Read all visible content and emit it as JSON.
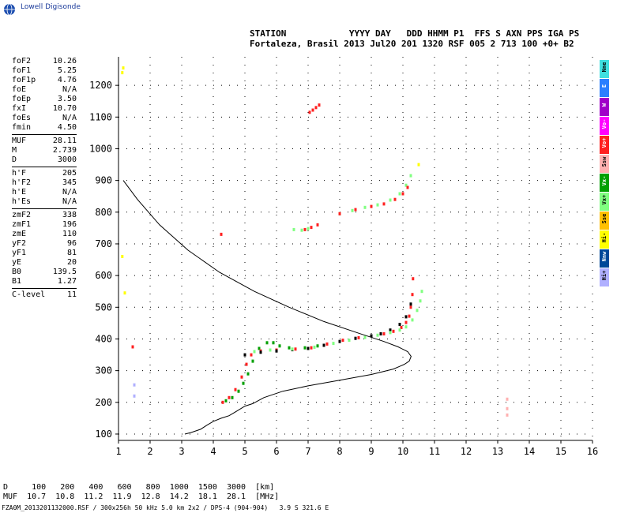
{
  "logo": {
    "text": "Lowell Digisonde",
    "icon": "globe-icon"
  },
  "header": {
    "line1": "STATION            YYYY DAY   DDD HHMM P1  FFS S AXN PPS IGA PS",
    "line2": "Fortaleza, Brasil 2013 Jul20 201 1320 RSF 005 2 713 100 +0+ B2"
  },
  "params": [
    [
      {
        "name": "foF2",
        "value": "10.26"
      },
      {
        "name": "foF1",
        "value": "5.25"
      },
      {
        "name": "foF1p",
        "value": "4.76"
      },
      {
        "name": "foE",
        "value": "N/A"
      },
      {
        "name": "foEp",
        "value": "3.50"
      },
      {
        "name": "fxI",
        "value": "10.70"
      },
      {
        "name": "foEs",
        "value": "N/A"
      },
      {
        "name": "fmin",
        "value": "4.50"
      }
    ],
    [
      {
        "name": "MUF",
        "value": "28.11"
      },
      {
        "name": "M",
        "value": "2.739"
      },
      {
        "name": "D",
        "value": "3000"
      }
    ],
    [
      {
        "name": "h'F",
        "value": "205"
      },
      {
        "name": "h'F2",
        "value": "345"
      },
      {
        "name": "h'E",
        "value": "N/A"
      },
      {
        "name": "h'Es",
        "value": "N/A"
      }
    ],
    [
      {
        "name": "zmF2",
        "value": "338"
      },
      {
        "name": "zmF1",
        "value": "196"
      },
      {
        "name": "zmE",
        "value": "110"
      },
      {
        "name": "yF2",
        "value": "96"
      },
      {
        "name": "yF1",
        "value": "81"
      },
      {
        "name": "yE",
        "value": "20"
      },
      {
        "name": "B0",
        "value": "139.5"
      },
      {
        "name": "B1",
        "value": "1.27"
      }
    ],
    [
      {
        "name": "C-level",
        "value": "11"
      }
    ]
  ],
  "legend": [
    {
      "label": "Nne",
      "color": "#40e0e0"
    },
    {
      "label": "E",
      "color": "#2a7fff"
    },
    {
      "label": "W",
      "color": "#a000c8"
    },
    {
      "label": "Vo-",
      "color": "#ff00ff"
    },
    {
      "label": "Vo+",
      "color": "#ff2020"
    },
    {
      "label": "Ssw",
      "color": "#ffb0b0"
    },
    {
      "label": "Vx-",
      "color": "#00a000"
    },
    {
      "label": "Vx+",
      "color": "#80ff80"
    },
    {
      "label": "Sse",
      "color": "#ffc000"
    },
    {
      "label": "Hi-",
      "color": "#ffff00"
    },
    {
      "label": "Nnw",
      "color": "#004898"
    },
    {
      "label": "Hi+",
      "color": "#b0b0ff"
    }
  ],
  "footer": {
    "d_line": "D     100   200   400   600   800  1000  1500  3000  [km]",
    "muf_line": "MUF  10.7  10.8  11.2  11.9  12.8  14.2  18.1  28.1  [MHz]",
    "file_line": "FZA0M_2013201132000.RSF / 300x256h 50 kHz 5.0 km 2x2 / DPS-4 (904-904)   3.9 S 321.6 E"
  },
  "chart_data": {
    "type": "scatter",
    "title": "",
    "xlabel": "",
    "ylabel": "",
    "xlim": [
      1,
      16
    ],
    "ylim": [
      80,
      1290
    ],
    "x_ticks": [
      1,
      2,
      3,
      4,
      5,
      6,
      7,
      8,
      9,
      10,
      11,
      12,
      13,
      14,
      15,
      16
    ],
    "y_ticks": [
      100,
      200,
      300,
      400,
      500,
      600,
      700,
      800,
      900,
      1000,
      1100,
      1200
    ],
    "grid": "dotted",
    "profile": [
      [
        3.1,
        100
      ],
      [
        3.3,
        105
      ],
      [
        3.6,
        115
      ],
      [
        3.8,
        128
      ],
      [
        4.0,
        140
      ],
      [
        4.25,
        150
      ],
      [
        4.5,
        158
      ],
      [
        4.7,
        170
      ],
      [
        5.0,
        188
      ],
      [
        5.25,
        196
      ],
      [
        5.6,
        215
      ],
      [
        6.2,
        235
      ],
      [
        7.0,
        252
      ],
      [
        8.0,
        270
      ],
      [
        9.0,
        288
      ],
      [
        9.7,
        305
      ],
      [
        10.05,
        320
      ],
      [
        10.2,
        330
      ],
      [
        10.26,
        345
      ],
      [
        10.15,
        360
      ],
      [
        9.85,
        375
      ],
      [
        9.4,
        392
      ],
      [
        8.6,
        418
      ],
      [
        7.5,
        455
      ],
      [
        6.4,
        500
      ],
      [
        5.3,
        550
      ],
      [
        4.2,
        610
      ],
      [
        3.2,
        680
      ],
      [
        2.3,
        760
      ],
      [
        1.6,
        840
      ],
      [
        1.15,
        900
      ]
    ],
    "series": [
      {
        "color": "#00a000",
        "points": [
          [
            4.4,
            205
          ],
          [
            4.6,
            215
          ],
          [
            4.8,
            235
          ],
          [
            4.95,
            260
          ],
          [
            5.1,
            290
          ],
          [
            5.25,
            330
          ],
          [
            5.45,
            370
          ],
          [
            5.7,
            388
          ],
          [
            5.9,
            388
          ],
          [
            6.1,
            378
          ],
          [
            6.4,
            372
          ],
          [
            6.9,
            372
          ],
          [
            7.3,
            378
          ]
        ]
      },
      {
        "color": "#ff2020",
        "points": [
          [
            4.3,
            200
          ],
          [
            4.5,
            215
          ],
          [
            4.7,
            240
          ],
          [
            4.9,
            280
          ],
          [
            5.05,
            320
          ],
          [
            5.2,
            350
          ],
          [
            5.5,
            362
          ],
          [
            6.0,
            365
          ],
          [
            6.6,
            368
          ],
          [
            7.1,
            372
          ],
          [
            7.6,
            384
          ],
          [
            8.1,
            396
          ],
          [
            8.6,
            404
          ],
          [
            9.0,
            410
          ],
          [
            9.4,
            416
          ],
          [
            9.7,
            424
          ],
          [
            9.95,
            436
          ],
          [
            10.1,
            452
          ],
          [
            10.2,
            472
          ],
          [
            10.25,
            500
          ],
          [
            10.3,
            540
          ],
          [
            10.32,
            590
          ]
        ]
      },
      {
        "color": "#000000",
        "points": [
          [
            5.0,
            350
          ],
          [
            5.5,
            358
          ],
          [
            6.0,
            362
          ],
          [
            6.5,
            366
          ],
          [
            7.0,
            370
          ],
          [
            7.5,
            380
          ],
          [
            8.0,
            392
          ],
          [
            8.5,
            402
          ],
          [
            9.0,
            410
          ],
          [
            9.3,
            416
          ],
          [
            9.6,
            428
          ],
          [
            9.9,
            446
          ],
          [
            10.1,
            470
          ],
          [
            10.25,
            510
          ]
        ]
      },
      {
        "color": "#80ff80",
        "points": [
          [
            5.3,
            360
          ],
          [
            5.8,
            365
          ],
          [
            6.5,
            368
          ],
          [
            7.2,
            374
          ],
          [
            7.8,
            386
          ],
          [
            8.3,
            396
          ],
          [
            8.8,
            405
          ],
          [
            9.2,
            412
          ],
          [
            9.6,
            420
          ],
          [
            9.9,
            428
          ],
          [
            10.1,
            438
          ],
          [
            10.3,
            460
          ],
          [
            10.45,
            490
          ],
          [
            10.55,
            520
          ],
          [
            10.6,
            550
          ]
        ]
      },
      {
        "color": "#80ff80",
        "points": [
          [
            6.55,
            745
          ],
          [
            6.8,
            743
          ],
          [
            7.0,
            748
          ],
          [
            8.0,
            795
          ],
          [
            8.4,
            805
          ],
          [
            8.8,
            815
          ],
          [
            9.2,
            823
          ],
          [
            9.6,
            838
          ],
          [
            9.9,
            858
          ],
          [
            10.1,
            885
          ],
          [
            10.25,
            915
          ]
        ]
      },
      {
        "color": "#ff2020",
        "points": [
          [
            6.9,
            745
          ],
          [
            7.1,
            752
          ],
          [
            7.3,
            760
          ],
          [
            8.0,
            795
          ],
          [
            8.5,
            808
          ],
          [
            9.0,
            818
          ],
          [
            9.4,
            826
          ],
          [
            9.75,
            840
          ],
          [
            10.0,
            858
          ],
          [
            10.15,
            878
          ]
        ]
      },
      {
        "color": "#ff2020",
        "points": [
          [
            7.05,
            1115
          ],
          [
            7.15,
            1122
          ],
          [
            7.25,
            1130
          ],
          [
            7.35,
            1138
          ]
        ]
      },
      {
        "color": "#ffb0b0",
        "points": [
          [
            13.3,
            160
          ],
          [
            13.3,
            180
          ],
          [
            13.3,
            210
          ]
        ]
      },
      {
        "color": "#b0b0ff",
        "points": [
          [
            1.5,
            220
          ],
          [
            1.5,
            255
          ]
        ]
      },
      {
        "color": "#ffff00",
        "points": [
          [
            1.12,
            660
          ],
          [
            1.12,
            1240
          ],
          [
            1.15,
            1255
          ],
          [
            1.2,
            545
          ],
          [
            10.5,
            950
          ]
        ]
      },
      {
        "color": "#ff2020",
        "points": [
          [
            4.25,
            730
          ],
          [
            1.45,
            375
          ]
        ]
      }
    ]
  }
}
